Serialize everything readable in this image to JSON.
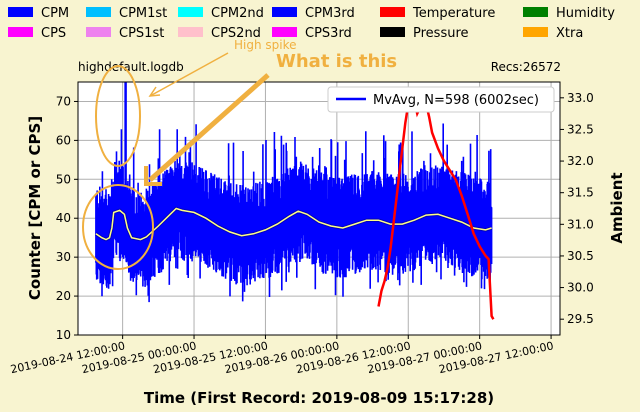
{
  "chart_data": {
    "type": "line",
    "filename": "highdefault.logdb",
    "records": "Recs:26572",
    "legend_top": [
      {
        "label": "CPM",
        "color": "#0000ff"
      },
      {
        "label": "CPM1st",
        "color": "#00bfff"
      },
      {
        "label": "CPM2nd",
        "color": "#00ffff"
      },
      {
        "label": "CPM3rd",
        "color": "#0000ff"
      },
      {
        "label": "Temperature",
        "color": "#ff0000"
      },
      {
        "label": "Humidity",
        "color": "#008000"
      },
      {
        "label": "CPS",
        "color": "#ff00ff"
      },
      {
        "label": "CPS1st",
        "color": "#ee82ee"
      },
      {
        "label": "CPS2nd",
        "color": "#ffc0cb"
      },
      {
        "label": "CPS3rd",
        "color": "#ff00ff"
      },
      {
        "label": "Pressure",
        "color": "#000000"
      },
      {
        "label": "Xtra",
        "color": "#ffa500"
      }
    ],
    "inner_legend": "MvAvg, N=598 (6002sec)",
    "annotations": {
      "spike": "High spike",
      "question": "What is this"
    },
    "ylabel": "Counter  [CPM or CPS]",
    "y2label": "Ambient",
    "xlabel": "Time (First Record: 2019-08-09 15:17:28)",
    "ylim": [
      10,
      75
    ],
    "y2lim": [
      29.25,
      33.25
    ],
    "yticks": [
      "10",
      "20",
      "30",
      "40",
      "50",
      "60",
      "70"
    ],
    "y2ticks": [
      "29.5",
      "30.0",
      "30.5",
      "31.0",
      "31.5",
      "32.0",
      "32.5",
      "33.0"
    ],
    "xticks": [
      "2019-08-24  12:00:00",
      "2019-08-25  00:00:00",
      "2019-08-25  12:00:00",
      "2019-08-26  00:00:00",
      "2019-08-26  12:00:00",
      "2019-08-27  00:00:00",
      "2019-08-27  12:00:00"
    ],
    "xlim_hours_from_2019_08_24_12": [
      -7.5,
      73.5
    ],
    "series": [
      {
        "name": "CPM",
        "color": "#0000ff",
        "band_hours": [
          -4.5,
          62
        ],
        "typical_low": 27,
        "typical_high": 46,
        "spike_hour": 0.5,
        "spike_value": 75
      },
      {
        "name": "MvAvg, N=598 (6002sec)",
        "color": "#ffff80",
        "points": [
          [
            -4.5,
            36
          ],
          [
            -3.5,
            35
          ],
          [
            -2.8,
            34.5
          ],
          [
            -2.2,
            35
          ],
          [
            -1.8,
            37.5
          ],
          [
            -1.5,
            41.5
          ],
          [
            -0.5,
            42
          ],
          [
            0.3,
            41
          ],
          [
            0.8,
            37.5
          ],
          [
            1.5,
            35
          ],
          [
            3,
            34.5
          ],
          [
            4,
            35.2
          ],
          [
            6,
            38
          ],
          [
            8,
            41
          ],
          [
            9,
            42.5
          ],
          [
            10,
            42
          ],
          [
            12,
            41.5
          ],
          [
            14,
            40
          ],
          [
            16,
            38
          ],
          [
            18,
            36.5
          ],
          [
            20,
            35.5
          ],
          [
            22,
            36
          ],
          [
            24,
            37
          ],
          [
            26,
            38.5
          ],
          [
            28,
            40.5
          ],
          [
            29.5,
            41.8
          ],
          [
            31,
            41
          ],
          [
            33,
            39
          ],
          [
            35,
            38
          ],
          [
            37,
            37.5
          ],
          [
            39,
            38.5
          ],
          [
            41,
            39.5
          ],
          [
            43,
            39.5
          ],
          [
            45,
            38.5
          ],
          [
            47,
            38.5
          ],
          [
            49,
            39.5
          ],
          [
            51,
            40.8
          ],
          [
            53,
            41
          ],
          [
            55,
            40
          ],
          [
            57,
            39
          ],
          [
            59,
            37.5
          ],
          [
            61,
            37
          ],
          [
            62,
            37.5
          ]
        ]
      },
      {
        "name": "Temperature",
        "color": "#ff0000",
        "axis": "right",
        "points": [
          [
            43,
            29.7
          ],
          [
            43.5,
            29.95
          ],
          [
            44,
            30.1
          ],
          [
            44.5,
            30.3
          ],
          [
            45,
            30.6
          ],
          [
            45.5,
            31.0
          ],
          [
            46,
            31.4
          ],
          [
            46.5,
            31.8
          ],
          [
            47,
            32.2
          ],
          [
            47.5,
            32.6
          ],
          [
            48,
            32.9
          ],
          [
            48.5,
            33.05
          ],
          [
            49,
            32.95
          ],
          [
            49.5,
            32.75
          ],
          [
            50,
            32.85
          ],
          [
            50.5,
            32.95
          ],
          [
            51,
            32.9
          ],
          [
            51.5,
            32.7
          ],
          [
            52,
            32.45
          ],
          [
            53,
            32.2
          ],
          [
            54,
            32.0
          ],
          [
            55,
            31.85
          ],
          [
            56,
            31.7
          ],
          [
            57,
            31.45
          ],
          [
            58,
            31.15
          ],
          [
            59,
            30.85
          ],
          [
            60,
            30.65
          ],
          [
            61,
            30.5
          ],
          [
            61.5,
            30.45
          ],
          [
            62,
            29.55
          ],
          [
            62.3,
            29.5
          ]
        ]
      }
    ]
  }
}
